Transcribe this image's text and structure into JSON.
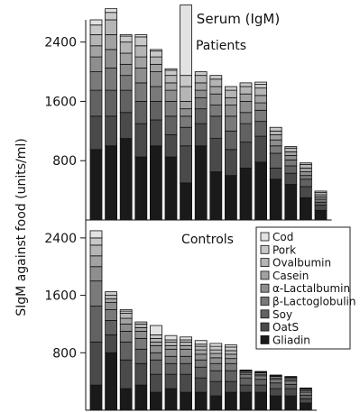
{
  "figure": {
    "title": "Serum (IgM)",
    "ylabel": "SIgM against food (units/ml)"
  },
  "legend": {
    "items": [
      "Cod",
      "Pork",
      "Ovalbumin",
      "Casein",
      "α-Lactalbumin",
      "β-Lactoglobulin",
      "Soy",
      "OatS",
      "Gliadin"
    ]
  },
  "colors": {
    "Gliadin": "#1a1a1a",
    "OatS": "#4a4a4a",
    "Soy": "#626262",
    "β-Lactoglobulin": "#7a7a7a",
    "α-Lactalbumin": "#8e8e8e",
    "Casein": "#a2a2a2",
    "Ovalbumin": "#b5b5b5",
    "Pork": "#c8c8c8",
    "Cod": "#e2e2e2"
  },
  "chart_data": [
    {
      "type": "bar",
      "stacked": true,
      "title": "Patients",
      "ylabel": "SIgM against food (units/ml)",
      "ylim": [
        0,
        2700
      ],
      "yticks": [
        800,
        1600,
        2400
      ],
      "series_order": [
        "Gliadin",
        "OatS",
        "Soy",
        "β-Lactoglobulin",
        "α-Lactalbumin",
        "Casein",
        "Ovalbumin",
        "Pork",
        "Cod"
      ],
      "bars": [
        [
          950,
          450,
          350,
          250,
          200,
          150,
          150,
          130,
          70
        ],
        [
          1000,
          400,
          350,
          300,
          250,
          200,
          200,
          100,
          50
        ],
        [
          1100,
          350,
          300,
          200,
          150,
          150,
          150,
          80,
          20
        ],
        [
          850,
          450,
          300,
          250,
          200,
          150,
          150,
          120,
          30
        ],
        [
          1000,
          350,
          250,
          200,
          200,
          100,
          100,
          80,
          20
        ],
        [
          850,
          300,
          250,
          200,
          150,
          100,
          100,
          70,
          20
        ],
        [
          500,
          500,
          250,
          150,
          100,
          100,
          200,
          150,
          950
        ],
        [
          1000,
          300,
          200,
          150,
          100,
          100,
          100,
          50,
          0
        ],
        [
          650,
          450,
          300,
          150,
          150,
          100,
          100,
          50,
          0
        ],
        [
          600,
          350,
          250,
          200,
          150,
          100,
          100,
          50,
          0
        ],
        [
          700,
          350,
          250,
          150,
          150,
          100,
          100,
          50,
          0
        ],
        [
          780,
          350,
          200,
          150,
          100,
          100,
          100,
          50,
          30
        ],
        [
          550,
          150,
          200,
          100,
          80,
          70,
          50,
          50,
          0
        ],
        [
          480,
          150,
          100,
          80,
          60,
          50,
          50,
          20,
          0
        ],
        [
          300,
          150,
          100,
          50,
          50,
          50,
          50,
          20,
          0
        ],
        [
          130,
          70,
          40,
          40,
          30,
          30,
          30,
          20,
          0
        ]
      ]
    },
    {
      "type": "bar",
      "stacked": true,
      "title": "Controls",
      "ylim": [
        0,
        2700
      ],
      "yticks": [
        800,
        1600,
        2400
      ],
      "series_order": [
        "Gliadin",
        "OatS",
        "Soy",
        "β-Lactoglobulin",
        "α-Lactalbumin",
        "Casein",
        "Ovalbumin",
        "Pork",
        "Cod"
      ],
      "bars": [
        [
          350,
          600,
          500,
          350,
          200,
          150,
          150,
          100,
          100
        ],
        [
          800,
          250,
          200,
          150,
          100,
          50,
          50,
          50,
          0
        ],
        [
          300,
          400,
          250,
          150,
          100,
          80,
          70,
          30,
          20
        ],
        [
          350,
          300,
          200,
          150,
          100,
          50,
          50,
          30,
          0
        ],
        [
          250,
          250,
          200,
          100,
          100,
          50,
          50,
          50,
          130
        ],
        [
          300,
          200,
          150,
          100,
          100,
          50,
          50,
          30,
          60
        ],
        [
          250,
          250,
          150,
          100,
          100,
          50,
          50,
          30,
          40
        ],
        [
          250,
          200,
          150,
          100,
          80,
          60,
          50,
          30,
          50
        ],
        [
          200,
          200,
          150,
          100,
          80,
          60,
          50,
          50,
          40
        ],
        [
          250,
          150,
          150,
          100,
          70,
          60,
          50,
          50,
          30
        ],
        [
          250,
          100,
          100,
          50,
          20,
          20,
          10,
          10,
          0
        ],
        [
          250,
          100,
          80,
          50,
          20,
          20,
          10,
          10,
          0
        ],
        [
          200,
          100,
          80,
          50,
          20,
          20,
          10,
          10,
          0
        ],
        [
          200,
          100,
          60,
          50,
          20,
          20,
          10,
          10,
          0
        ],
        [
          100,
          60,
          50,
          40,
          20,
          20,
          10,
          10,
          0
        ]
      ]
    }
  ]
}
